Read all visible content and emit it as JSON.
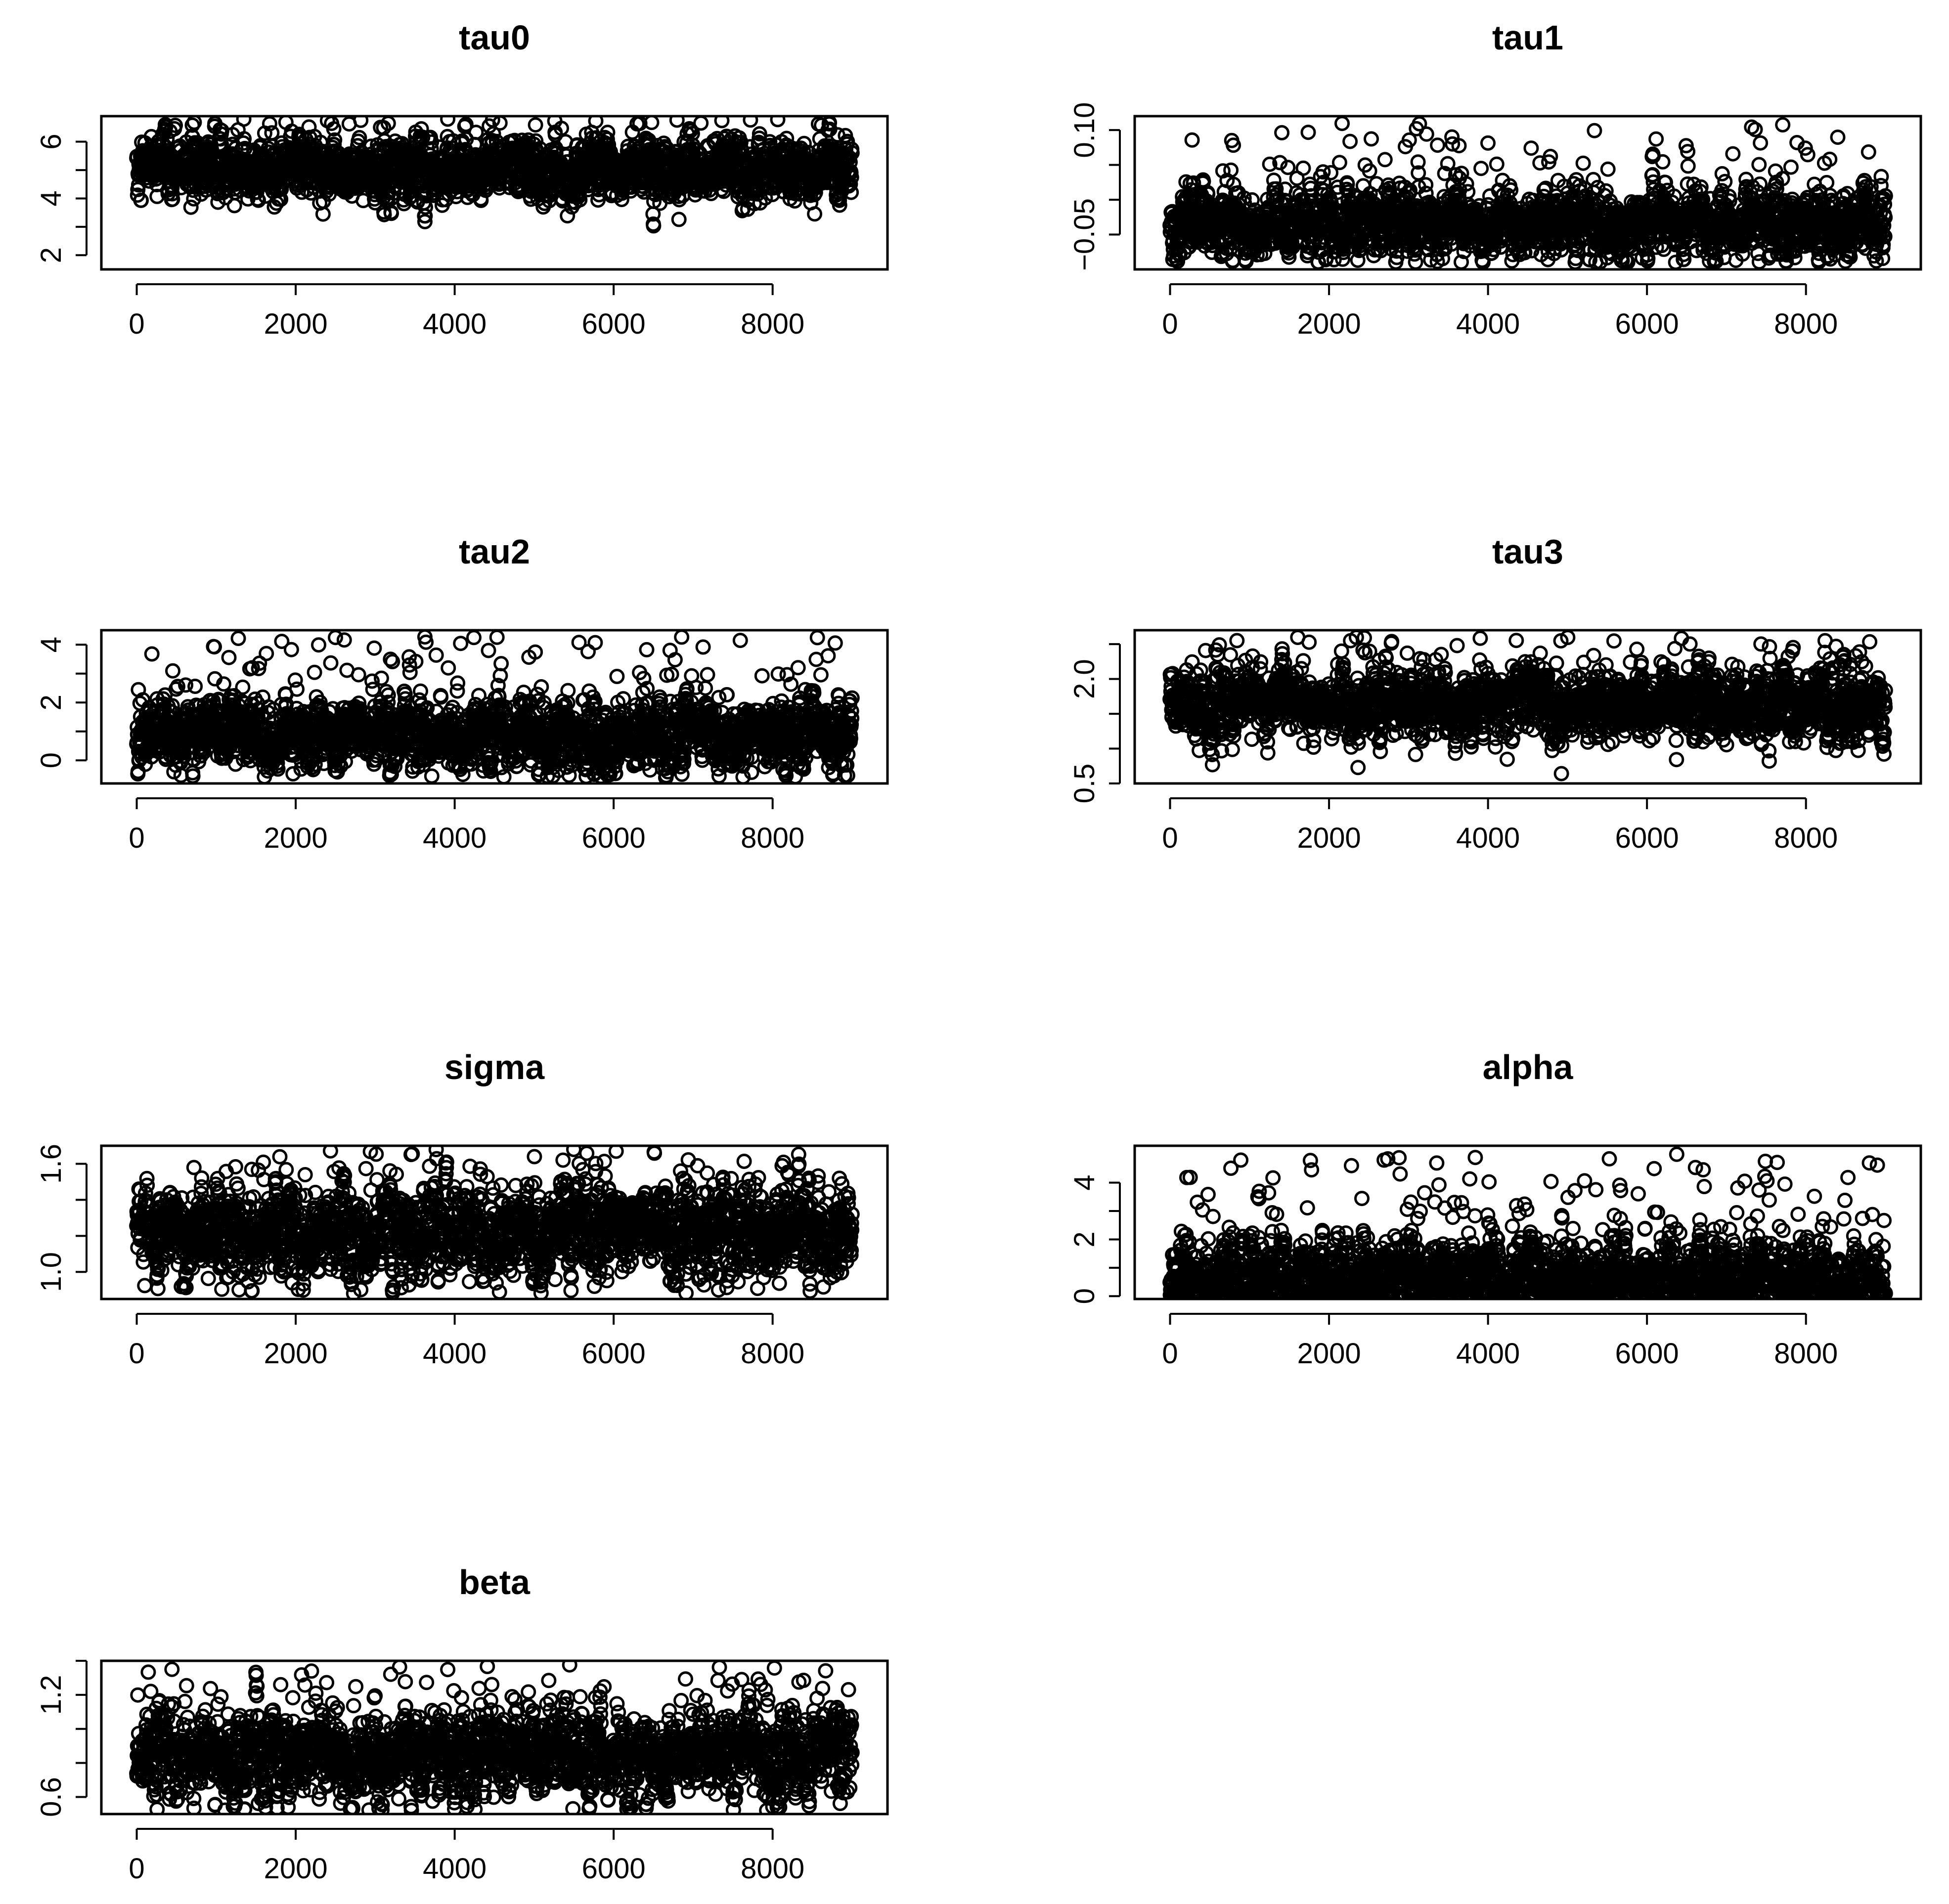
{
  "chart_data": [
    {
      "type": "scatter",
      "title": "tau0",
      "xlabel": "",
      "ylabel": "",
      "xlim": [
        0,
        9000
      ],
      "ylim": [
        1.5,
        6.9
      ],
      "xticks": [
        0,
        2000,
        4000,
        6000,
        8000
      ],
      "yticks": [
        2,
        3,
        4,
        5,
        6
      ],
      "xtick_labels": [
        "0",
        "2000",
        "4000",
        "6000",
        "8000"
      ],
      "ytick_labels": [
        "2",
        "",
        "4",
        "",
        "6"
      ],
      "n": 9000,
      "center": 5.0,
      "spread": 0.55,
      "min": 1.6,
      "max": 6.8,
      "grid": false
    },
    {
      "type": "scatter",
      "title": "tau1",
      "xlabel": "",
      "ylabel": "",
      "xlim": [
        0,
        9000
      ],
      "ylim": [
        -0.1,
        0.12
      ],
      "xticks": [
        0,
        2000,
        4000,
        6000,
        8000
      ],
      "yticks": [
        -0.05,
        0.0,
        0.05,
        0.1
      ],
      "xtick_labels": [
        "0",
        "2000",
        "4000",
        "6000",
        "8000"
      ],
      "ytick_labels": [
        "−0.05",
        "",
        "",
        "0.10"
      ],
      "n": 9000,
      "center": -0.035,
      "spread": 0.025,
      "min": -0.09,
      "max": 0.11,
      "grid": false
    },
    {
      "type": "scatter",
      "title": "tau2",
      "xlabel": "",
      "ylabel": "",
      "xlim": [
        0,
        9000
      ],
      "ylim": [
        -0.8,
        4.5
      ],
      "xticks": [
        0,
        2000,
        4000,
        6000,
        8000
      ],
      "yticks": [
        0,
        1,
        2,
        3,
        4
      ],
      "xtick_labels": [
        "0",
        "2000",
        "4000",
        "6000",
        "8000"
      ],
      "ytick_labels": [
        "0",
        "",
        "2",
        "",
        "4"
      ],
      "n": 9000,
      "center": 0.9,
      "spread": 0.6,
      "min": -0.6,
      "max": 4.3,
      "grid": false
    },
    {
      "type": "scatter",
      "title": "tau3",
      "xlabel": "",
      "ylabel": "",
      "xlim": [
        0,
        9000
      ],
      "ylim": [
        0.5,
        2.7
      ],
      "xticks": [
        0,
        2000,
        4000,
        6000,
        8000
      ],
      "yticks": [
        0.5,
        1.0,
        1.5,
        2.0,
        2.5
      ],
      "xtick_labels": [
        "0",
        "2000",
        "4000",
        "6000",
        "8000"
      ],
      "ytick_labels": [
        "0.5",
        "",
        "",
        "2.0",
        ""
      ],
      "n": 9000,
      "center": 1.65,
      "spread": 0.25,
      "min": 0.55,
      "max": 2.6,
      "grid": false
    },
    {
      "type": "scatter",
      "title": "sigma",
      "xlabel": "",
      "ylabel": "",
      "xlim": [
        0,
        9000
      ],
      "ylim": [
        0.85,
        1.7
      ],
      "xticks": [
        0,
        2000,
        4000,
        6000,
        8000
      ],
      "yticks": [
        1.0,
        1.2,
        1.4,
        1.6
      ],
      "xtick_labels": [
        "0",
        "2000",
        "4000",
        "6000",
        "8000"
      ],
      "ytick_labels": [
        "1.0",
        "",
        "",
        "1.6"
      ],
      "n": 9000,
      "center": 1.22,
      "spread": 0.13,
      "min": 0.88,
      "max": 1.68,
      "grid": false
    },
    {
      "type": "scatter",
      "title": "alpha",
      "xlabel": "",
      "ylabel": "",
      "xlim": [
        0,
        9000
      ],
      "ylim": [
        -0.1,
        5.3
      ],
      "xticks": [
        0,
        2000,
        4000,
        6000,
        8000
      ],
      "yticks": [
        0,
        1,
        2,
        3,
        4
      ],
      "xtick_labels": [
        "0",
        "2000",
        "4000",
        "6000",
        "8000"
      ],
      "ytick_labels": [
        "0",
        "",
        "2",
        "",
        "4"
      ],
      "n": 9000,
      "center": 0.6,
      "spread": 0.7,
      "min": 0.0,
      "max": 5.0,
      "grid": false
    },
    {
      "type": "scatter",
      "title": "beta",
      "xlabel": "",
      "ylabel": "",
      "xlim": [
        0,
        9000
      ],
      "ylim": [
        0.5,
        1.4
      ],
      "xticks": [
        0,
        2000,
        4000,
        6000,
        8000
      ],
      "yticks": [
        0.6,
        0.8,
        1.0,
        1.2,
        1.4
      ],
      "xtick_labels": [
        "0",
        "2000",
        "4000",
        "6000",
        "8000"
      ],
      "ytick_labels": [
        "0.6",
        "",
        "",
        "1.2",
        ""
      ],
      "n": 9000,
      "center": 0.85,
      "spread": 0.13,
      "min": 0.52,
      "max": 1.38,
      "grid": false
    }
  ]
}
